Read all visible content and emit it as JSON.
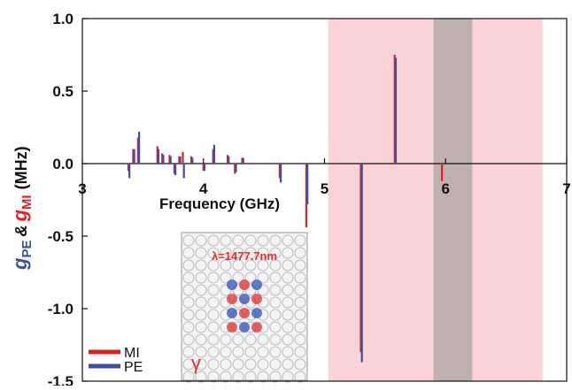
{
  "chart_data": {
    "type": "stem",
    "xlabel": "Frequency (GHz)",
    "ylabel": {
      "g_pe": "g",
      "pe": "PE",
      "amp": "&",
      "g_mi": "g",
      "mi": "MI",
      "unit": "(MHz)"
    },
    "xlim": [
      3,
      7
    ],
    "ylim": [
      -1.5,
      1.0
    ],
    "xticks": [
      3,
      4,
      5,
      6,
      7
    ],
    "yticks": [
      {
        "value": 1.0,
        "label": "1.0"
      },
      {
        "value": 0.5,
        "label": "0.5"
      },
      {
        "value": 0.0,
        "label": "0.0"
      },
      {
        "value": -0.5,
        "label": "-0.5"
      },
      {
        "value": -1.0,
        "label": "-1.0"
      },
      {
        "value": -1.5,
        "label": "-1.5"
      }
    ],
    "shaded_regions": [
      {
        "xlim": [
          5.03,
          6.8
        ],
        "color": "#f9d3d6"
      },
      {
        "xlim": [
          5.9,
          6.22
        ],
        "color": "#c0b0b0"
      }
    ],
    "x": [
      3.38,
      3.42,
      3.46,
      3.62,
      3.66,
      3.72,
      3.76,
      3.8,
      3.83,
      3.9,
      4.0,
      4.08,
      4.2,
      4.26,
      4.32,
      4.63,
      4.85,
      5.3,
      5.58,
      5.97
    ],
    "series": [
      {
        "name": "MI",
        "color": "#e02020",
        "values": [
          -0.05,
          0.1,
          0.18,
          0.12,
          0.07,
          0.06,
          -0.07,
          0.05,
          0.08,
          0.05,
          -0.05,
          0.1,
          0.06,
          -0.07,
          0.04,
          -0.1,
          -0.44,
          -1.3,
          0.75,
          -0.12
        ]
      },
      {
        "name": "PE",
        "color": "#3a4fa8",
        "values": [
          -0.1,
          0.1,
          0.22,
          0.1,
          0.06,
          0.05,
          -0.08,
          0.05,
          -0.1,
          0.04,
          -0.05,
          0.13,
          0.05,
          -0.06,
          0.04,
          -0.13,
          -0.28,
          -1.37,
          0.73,
          0.0
        ]
      }
    ],
    "legend": "bottom-left",
    "inset": {
      "label": "λ=1477.7nm",
      "symbol": "γ"
    }
  }
}
